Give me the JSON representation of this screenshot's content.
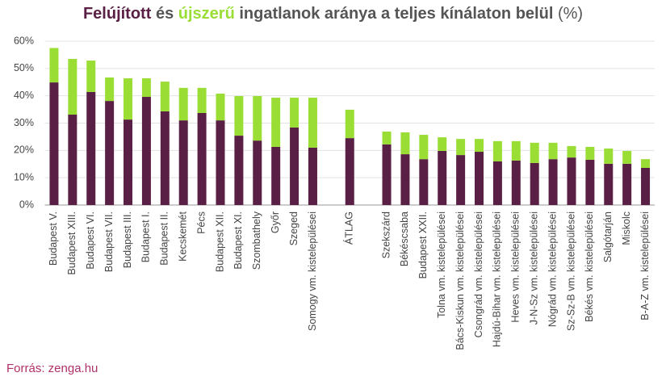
{
  "chart_data": {
    "type": "stacked_bar",
    "title_connector": "és",
    "title": "ingatlanok aránya a teljes kínálaton belül",
    "title_unit": "(%)",
    "source": "Forrás: zenga.hu",
    "categories": [
      "Budapest V.",
      "Budapest XIII.",
      "Budapest VI.",
      "Budapest VII.",
      "Budapest III.",
      "Budapest I.",
      "Budapest II.",
      "Kecskemét",
      "Pécs",
      "Budapest XII.",
      "Budapest XI.",
      "Szombathely",
      "Győr",
      "Szeged",
      "Somogy vm. kistelepülései",
      null,
      "ÁTLAG",
      null,
      "Szekszárd",
      "Békéscsaba",
      "Budapest XXII.",
      "Tolna vm. kistelepülései",
      "Bács-Kiskun vm. kistelepülései",
      "Csongrád vm. kistelepülései",
      "Hajdú-Bihar vm. kistelepülései",
      "Heves vm. kistelepülései",
      "J-N-Sz vm. kistelepülései",
      "Nógrád vm. kistelepülései",
      "Sz-Sz-B vm. kistelepülései",
      "Békés vm. kistelepülései",
      "Salgótarján",
      "Miskolc",
      "B-A-Z vm. kistelepülései"
    ],
    "series": [
      {
        "name": "Felújított",
        "color": "#5a1f44",
        "values": [
          44.9,
          33.1,
          41.4,
          38.1,
          31.3,
          39.6,
          34.3,
          31.0,
          33.7,
          31.0,
          25.4,
          23.6,
          21.3,
          28.4,
          21.0,
          null,
          24.5,
          null,
          22.2,
          18.6,
          16.8,
          19.8,
          18.3,
          19.5,
          16.0,
          16.3,
          15.4,
          16.8,
          17.4,
          16.6,
          15.1,
          15.1,
          13.6
        ]
      },
      {
        "name": "újszerű",
        "color": "#9ade35",
        "values": [
          12.6,
          20.4,
          11.5,
          8.6,
          15.1,
          6.8,
          10.9,
          11.9,
          9.2,
          9.8,
          14.5,
          16.3,
          18.0,
          10.9,
          18.3,
          null,
          10.4,
          null,
          4.7,
          8.0,
          8.9,
          5.0,
          5.9,
          4.7,
          7.4,
          7.1,
          7.4,
          6.0,
          4.2,
          4.7,
          5.6,
          4.7,
          3.2
        ]
      }
    ],
    "ylim": [
      0,
      60
    ],
    "yticks": [
      {
        "value": 0,
        "label": "0%"
      },
      {
        "value": 10,
        "label": "10%"
      },
      {
        "value": 20,
        "label": "20%"
      },
      {
        "value": 30,
        "label": "30%"
      },
      {
        "value": 40,
        "label": "40%"
      },
      {
        "value": 50,
        "label": "50%"
      },
      {
        "value": 60,
        "label": "60%"
      }
    ],
    "grid": true
  }
}
